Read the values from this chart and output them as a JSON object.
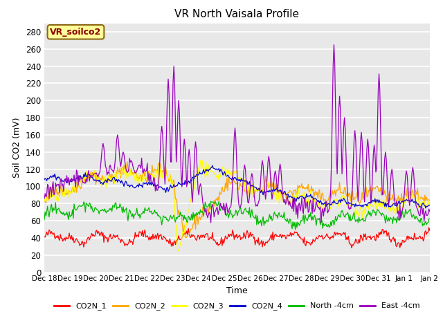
{
  "title": "VR North Vaisala Profile",
  "xlabel": "Time",
  "ylabel": "Soil CO2 (mV)",
  "annotation_text": "VR_soilco2",
  "annotation_color": "#8B0000",
  "annotation_bg": "#FFFF99",
  "annotation_border": "#8B6914",
  "ylim": [
    0,
    290
  ],
  "yticks": [
    0,
    20,
    40,
    60,
    80,
    100,
    120,
    140,
    160,
    180,
    200,
    220,
    240,
    260,
    280
  ],
  "bg_color": "#E8E8E8",
  "grid_color": "#FFFFFF",
  "series_colors": {
    "CO2N_1": "#FF0000",
    "CO2N_2": "#FFA500",
    "CO2N_3": "#FFFF00",
    "CO2N_4": "#0000CD",
    "North_4cm": "#00BB00",
    "East_4cm": "#9900BB"
  },
  "legend_labels": [
    "CO2N_1",
    "CO2N_2",
    "CO2N_3",
    "CO2N_4",
    "North -4cm",
    "East -4cm"
  ],
  "xtick_labels": [
    "Dec 18",
    "Dec 19",
    "Dec 20",
    "Dec 21",
    "Dec 22",
    "Dec 23",
    "Dec 24",
    "Dec 25",
    "Dec 26",
    "Dec 27",
    "Dec 28",
    "Dec 29",
    "Dec 30",
    "Dec 31",
    "Jan 1",
    "Jan 2"
  ],
  "n_points": 480
}
